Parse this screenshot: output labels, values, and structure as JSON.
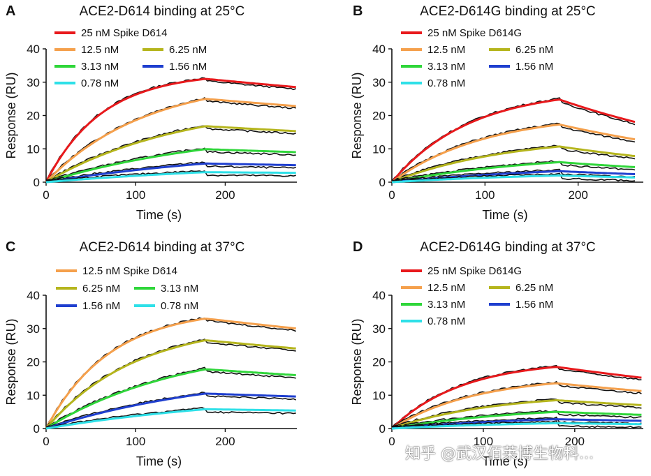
{
  "chart_data": [
    {
      "letter": "A",
      "type": "line",
      "title": "ACE2-D614 binding at 25°C",
      "xlabel": "Time (s)",
      "ylabel": "Response (RU)",
      "xlim": [
        0,
        280
      ],
      "ylim": [
        0,
        40
      ],
      "xticks": [
        0,
        100,
        200
      ],
      "yticks": [
        0,
        10,
        20,
        30,
        40
      ],
      "injection_end": 178,
      "x_end": 280,
      "series": [
        {
          "name": "25 nM Spike D614",
          "color": "#e8191c",
          "peak": 31.0,
          "end": 28.5,
          "kobs": 0.016
        },
        {
          "name": "12.5 nM",
          "color": "#f5a04c",
          "peak": 25.0,
          "end": 22.8,
          "kobs": 0.009
        },
        {
          "name": "6.25 nM",
          "color": "#b5b51d",
          "peak": 16.8,
          "end": 15.3,
          "kobs": 0.0065
        },
        {
          "name": "3.13 nM",
          "color": "#2fd63a",
          "peak": 9.9,
          "end": 9.0,
          "kobs": 0.005
        },
        {
          "name": "1.56 nM",
          "color": "#1f3fcf",
          "peak": 5.6,
          "end": 5.1,
          "kobs": 0.004
        },
        {
          "name": "0.78 nM",
          "color": "#2ee0e8",
          "peak": 3.0,
          "end": 2.8,
          "kobs": 0.0035
        }
      ]
    },
    {
      "letter": "B",
      "type": "line",
      "title": "ACE2-D614G binding at 25°C",
      "xlabel": "Time (s)",
      "ylabel": "Response (RU)",
      "xlim": [
        0,
        270
      ],
      "ylim": [
        0,
        40
      ],
      "xticks": [
        0,
        100,
        200
      ],
      "yticks": [
        0,
        10,
        20,
        30,
        40
      ],
      "injection_end": 180,
      "x_end": 262,
      "series": [
        {
          "name": "25 nM Spike D614G",
          "color": "#e8191c",
          "peak": 24.8,
          "end": 18.0,
          "kobs": 0.012
        },
        {
          "name": "12.5 nM",
          "color": "#f5a04c",
          "peak": 17.3,
          "end": 12.8,
          "kobs": 0.01
        },
        {
          "name": "6.25 nM",
          "color": "#b5b51d",
          "peak": 10.7,
          "end": 7.8,
          "kobs": 0.008
        },
        {
          "name": "3.13 nM",
          "color": "#2fd63a",
          "peak": 6.0,
          "end": 4.5,
          "kobs": 0.006
        },
        {
          "name": "1.56 nM",
          "color": "#1f3fcf",
          "peak": 3.3,
          "end": 2.4,
          "kobs": 0.005
        },
        {
          "name": "0.78 nM",
          "color": "#2ee0e8",
          "peak": 2.0,
          "end": 1.4,
          "kobs": 0.005
        }
      ]
    },
    {
      "letter": "C",
      "type": "line",
      "title": "ACE2-D614 binding at 37°C",
      "xlabel": "Time (s)",
      "ylabel": "Response (RU)",
      "xlim": [
        0,
        280
      ],
      "ylim": [
        0,
        40
      ],
      "xticks": [
        0,
        100,
        200
      ],
      "yticks": [
        0,
        10,
        20,
        30,
        40
      ],
      "injection_end": 178,
      "x_end": 280,
      "series": [
        {
          "name": "12.5 nM Spike D614",
          "color": "#f5a04c",
          "peak": 33.0,
          "end": 30.0,
          "kobs": 0.014
        },
        {
          "name": "6.25 nM",
          "color": "#b5b51d",
          "peak": 26.5,
          "end": 24.0,
          "kobs": 0.01
        },
        {
          "name": "3.13 nM",
          "color": "#2fd63a",
          "peak": 17.8,
          "end": 16.0,
          "kobs": 0.0065
        },
        {
          "name": "1.56 nM",
          "color": "#1f3fcf",
          "peak": 10.5,
          "end": 9.6,
          "kobs": 0.005
        },
        {
          "name": "0.78 nM",
          "color": "#2ee0e8",
          "peak": 5.8,
          "end": 5.4,
          "kobs": 0.004
        }
      ]
    },
    {
      "letter": "D",
      "type": "line",
      "title": "ACE2-D614G binding at 37°C",
      "xlabel": "Time (s)",
      "ylabel": "Response (RU)",
      "xlim": [
        0,
        275
      ],
      "ylim": [
        0,
        40
      ],
      "xticks": [
        0,
        100,
        200
      ],
      "yticks": [
        0,
        10,
        20,
        30,
        40
      ],
      "injection_end": 180,
      "x_end": 275,
      "series": [
        {
          "name": "25 nM Spike D614G",
          "color": "#e8191c",
          "peak": 18.5,
          "end": 15.2,
          "kobs": 0.013
        },
        {
          "name": "12.5 nM",
          "color": "#f5a04c",
          "peak": 13.6,
          "end": 11.2,
          "kobs": 0.011
        },
        {
          "name": "6.25 nM",
          "color": "#b5b51d",
          "peak": 8.5,
          "end": 7.0,
          "kobs": 0.009
        },
        {
          "name": "3.13 nM",
          "color": "#2fd63a",
          "peak": 5.0,
          "end": 4.1,
          "kobs": 0.007
        },
        {
          "name": "1.56 nM",
          "color": "#1f3fcf",
          "peak": 2.8,
          "end": 2.3,
          "kobs": 0.006
        },
        {
          "name": "0.78 nM",
          "color": "#2ee0e8",
          "peak": 1.6,
          "end": 1.3,
          "kobs": 0.006
        }
      ]
    }
  ],
  "watermark": "知乎 @武汉佰莱博生物科..."
}
